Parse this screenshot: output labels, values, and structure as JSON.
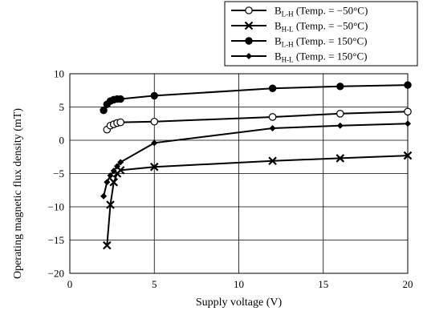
{
  "chart_data": {
    "type": "line",
    "title": "",
    "xlabel": "Supply voltage  (V)",
    "ylabel": "Operating magnetic flux density  (mT)",
    "xlim": [
      0,
      20
    ],
    "ylim": [
      -20,
      10
    ],
    "xticks": [
      0,
      5,
      10,
      15,
      20
    ],
    "yticks": [
      10,
      5,
      0,
      -5,
      -10,
      -15,
      -20
    ],
    "grid": true,
    "legend_position": "top-right",
    "series": [
      {
        "name": "B_L-H (Temp. = −50°C)",
        "legend_base": "B",
        "legend_sub": "L-H",
        "legend_note": " (Temp. = −50°C)",
        "marker": "open-circle",
        "x": [
          2.2,
          2.4,
          2.6,
          2.8,
          3.0,
          5.0,
          12.0,
          16.0,
          20.0
        ],
        "y": [
          1.6,
          2.2,
          2.4,
          2.6,
          2.7,
          2.8,
          3.5,
          4.0,
          4.3
        ]
      },
      {
        "name": "B_H-L (Temp. = −50°C)",
        "legend_base": "B",
        "legend_sub": "H-L",
        "legend_note": " (Temp. = −50°C)",
        "marker": "cross",
        "x": [
          2.2,
          2.4,
          2.6,
          2.8,
          3.0,
          5.0,
          12.0,
          16.0,
          20.0
        ],
        "y": [
          -15.8,
          -9.7,
          -6.3,
          -5.0,
          -4.5,
          -4.0,
          -3.1,
          -2.7,
          -2.3
        ]
      },
      {
        "name": "B_L-H (Temp. = 150°C)",
        "legend_base": "B",
        "legend_sub": "L-H",
        "legend_note": " (Temp. = 150°C)",
        "marker": "filled-circle",
        "x": [
          2.0,
          2.2,
          2.4,
          2.6,
          2.8,
          3.0,
          5.0,
          12.0,
          16.0,
          20.0
        ],
        "y": [
          4.5,
          5.4,
          5.9,
          6.1,
          6.2,
          6.2,
          6.7,
          7.8,
          8.1,
          8.3
        ]
      },
      {
        "name": "B_H-L (Temp. = 150°C)",
        "legend_base": "B",
        "legend_sub": "H-L",
        "legend_note": " (Temp. = 150°C)",
        "marker": "filled-diamond",
        "x": [
          2.0,
          2.2,
          2.4,
          2.6,
          2.8,
          3.0,
          5.0,
          12.0,
          16.0,
          20.0
        ],
        "y": [
          -8.4,
          -6.3,
          -5.3,
          -4.6,
          -3.9,
          -3.3,
          -0.4,
          1.8,
          2.2,
          2.5
        ]
      }
    ]
  }
}
